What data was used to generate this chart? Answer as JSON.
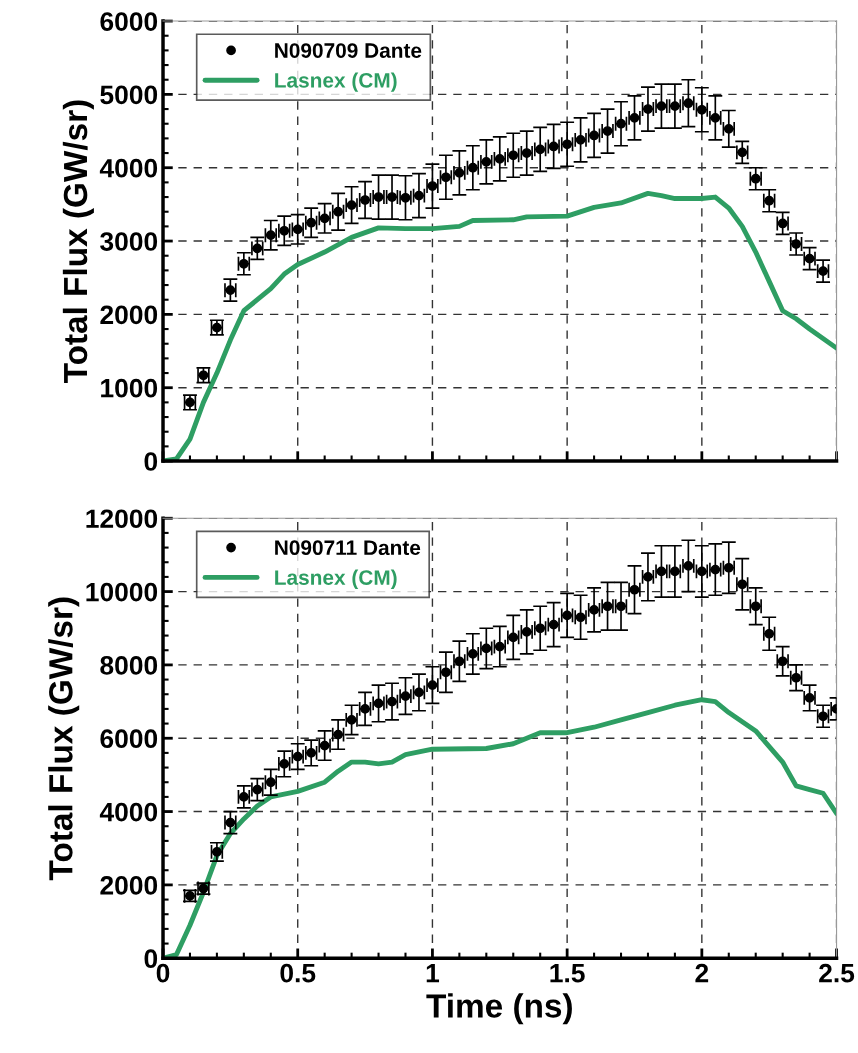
{
  "chart_data": [
    {
      "type": "line",
      "ylabel": "Total Flux (GW/sr)",
      "xlim": [
        0,
        2.5
      ],
      "ylim": [
        0,
        6000
      ],
      "xticks": [
        0,
        0.5,
        1,
        1.5,
        2,
        2.5
      ],
      "yticks": [
        0,
        1000,
        2000,
        3000,
        4000,
        5000,
        6000
      ],
      "tick_labels": "y",
      "grid": true,
      "legend": "top left",
      "series": [
        {
          "name": "N090709 Dante",
          "type": "scatter",
          "marker": "circle",
          "color": "#000000",
          "x": [
            0.1,
            0.15,
            0.2,
            0.25,
            0.3,
            0.35,
            0.4,
            0.45,
            0.5,
            0.55,
            0.6,
            0.65,
            0.7,
            0.75,
            0.8,
            0.85,
            0.9,
            0.95,
            1.0,
            1.05,
            1.1,
            1.15,
            1.2,
            1.25,
            1.3,
            1.35,
            1.4,
            1.45,
            1.5,
            1.55,
            1.6,
            1.65,
            1.7,
            1.75,
            1.8,
            1.85,
            1.9,
            1.95,
            2.0,
            2.05,
            2.1,
            2.15,
            2.2,
            2.25,
            2.3,
            2.35,
            2.4,
            2.45
          ],
          "values": [
            800,
            1170,
            1820,
            2330,
            2690,
            2900,
            3080,
            3140,
            3160,
            3250,
            3310,
            3400,
            3490,
            3560,
            3600,
            3600,
            3590,
            3620,
            3750,
            3870,
            3930,
            4000,
            4080,
            4120,
            4170,
            4200,
            4250,
            4290,
            4320,
            4380,
            4440,
            4500,
            4600,
            4680,
            4800,
            4840,
            4840,
            4880,
            4790,
            4680,
            4530,
            4210,
            3850,
            3550,
            3240,
            2960,
            2760,
            2590
          ],
          "errors": [
            100,
            100,
            100,
            150,
            150,
            150,
            200,
            200,
            200,
            200,
            200,
            250,
            250,
            250,
            300,
            300,
            300,
            300,
            300,
            300,
            300,
            300,
            300,
            300,
            300,
            300,
            300,
            300,
            300,
            300,
            300,
            300,
            300,
            300,
            300,
            300,
            300,
            320,
            300,
            300,
            250,
            150,
            150,
            150,
            150,
            150,
            150,
            150
          ],
          "xerrors": [
            0.02,
            0.02,
            0.02,
            0.02,
            0.02,
            0.02,
            0.02,
            0.02,
            0.02,
            0.02,
            0.02,
            0.02,
            0.02,
            0.02,
            0.02,
            0.02,
            0.02,
            0.02,
            0.02,
            0.02,
            0.02,
            0.02,
            0.02,
            0.02,
            0.02,
            0.02,
            0.02,
            0.02,
            0.02,
            0.02,
            0.02,
            0.02,
            0.02,
            0.02,
            0.02,
            0.02,
            0.02,
            0.02,
            0.02,
            0.02,
            0.02,
            0.02,
            0.02,
            0.02,
            0.02,
            0.02,
            0.02,
            0.02
          ]
        },
        {
          "name": "Lasnex (CM)",
          "line_style": "solid",
          "color": "#2e9e63",
          "x": [
            0,
            0.05,
            0.1,
            0.15,
            0.2,
            0.25,
            0.3,
            0.35,
            0.4,
            0.45,
            0.5,
            0.6,
            0.7,
            0.8,
            0.9,
            1.0,
            1.1,
            1.15,
            1.3,
            1.35,
            1.5,
            1.6,
            1.7,
            1.8,
            1.85,
            1.9,
            2.0,
            2.05,
            2.1,
            2.15,
            2.2,
            2.25,
            2.3,
            2.35,
            2.4,
            2.5
          ],
          "values": [
            0,
            30,
            300,
            800,
            1200,
            1650,
            2050,
            2200,
            2350,
            2550,
            2680,
            2850,
            3050,
            3180,
            3170,
            3170,
            3200,
            3280,
            3290,
            3330,
            3340,
            3460,
            3520,
            3650,
            3620,
            3580,
            3580,
            3600,
            3450,
            3200,
            2850,
            2450,
            2050,
            1940,
            1800,
            1540
          ]
        }
      ]
    },
    {
      "type": "line",
      "xlabel": "Time (ns)",
      "ylabel": "Total Flux (GW/sr)",
      "xlim": [
        0,
        2.5
      ],
      "ylim": [
        0,
        12000
      ],
      "xticks": [
        0,
        0.5,
        1,
        1.5,
        2,
        2.5
      ],
      "yticks": [
        0,
        2000,
        4000,
        6000,
        8000,
        10000,
        12000
      ],
      "grid": true,
      "legend": "top left",
      "series": [
        {
          "name": "N090711 Dante",
          "type": "scatter",
          "marker": "circle",
          "color": "#000000",
          "x": [
            0.1,
            0.15,
            0.2,
            0.25,
            0.3,
            0.35,
            0.4,
            0.45,
            0.5,
            0.55,
            0.6,
            0.65,
            0.7,
            0.75,
            0.8,
            0.85,
            0.9,
            0.95,
            1.0,
            1.05,
            1.1,
            1.15,
            1.2,
            1.25,
            1.3,
            1.35,
            1.4,
            1.45,
            1.5,
            1.55,
            1.6,
            1.65,
            1.7,
            1.75,
            1.8,
            1.85,
            1.9,
            1.95,
            2.0,
            2.05,
            2.1,
            2.15,
            2.2,
            2.25,
            2.3,
            2.35,
            2.4,
            2.45,
            2.5
          ],
          "values": [
            1700,
            1900,
            2900,
            3700,
            4400,
            4600,
            4800,
            5300,
            5500,
            5600,
            5800,
            6100,
            6500,
            6800,
            6950,
            7000,
            7150,
            7250,
            7450,
            7800,
            8100,
            8300,
            8450,
            8500,
            8750,
            8900,
            9000,
            9100,
            9350,
            9300,
            9500,
            9600,
            9600,
            10050,
            10400,
            10550,
            10550,
            10700,
            10550,
            10600,
            10650,
            10200,
            9600,
            8850,
            8100,
            7650,
            7100,
            6600,
            6800
          ],
          "errors": [
            150,
            150,
            250,
            300,
            300,
            300,
            350,
            350,
            350,
            350,
            400,
            400,
            400,
            450,
            500,
            500,
            500,
            500,
            500,
            550,
            550,
            550,
            550,
            550,
            600,
            600,
            600,
            600,
            600,
            600,
            600,
            650,
            650,
            650,
            650,
            700,
            700,
            700,
            700,
            700,
            700,
            700,
            500,
            450,
            400,
            350,
            350,
            300,
            300
          ],
          "xerrors": [
            0.02,
            0.02,
            0.02,
            0.02,
            0.02,
            0.02,
            0.02,
            0.02,
            0.02,
            0.02,
            0.02,
            0.02,
            0.02,
            0.02,
            0.02,
            0.02,
            0.02,
            0.02,
            0.02,
            0.02,
            0.02,
            0.02,
            0.02,
            0.02,
            0.02,
            0.02,
            0.02,
            0.02,
            0.02,
            0.02,
            0.02,
            0.02,
            0.02,
            0.02,
            0.02,
            0.02,
            0.02,
            0.02,
            0.02,
            0.02,
            0.02,
            0.02,
            0.02,
            0.02,
            0.02,
            0.02,
            0.02,
            0.02,
            0.02
          ]
        },
        {
          "name": "Lasnex (CM)",
          "line_style": "solid",
          "color": "#2e9e63",
          "x": [
            0,
            0.05,
            0.1,
            0.15,
            0.2,
            0.25,
            0.3,
            0.35,
            0.4,
            0.5,
            0.6,
            0.65,
            0.7,
            0.75,
            0.8,
            0.85,
            0.9,
            1.0,
            1.2,
            1.3,
            1.4,
            1.5,
            1.6,
            1.7,
            1.8,
            1.9,
            2.0,
            2.05,
            2.1,
            2.2,
            2.3,
            2.35,
            2.4,
            2.45,
            2.5
          ],
          "values": [
            0,
            100,
            900,
            1800,
            2800,
            3400,
            3800,
            4150,
            4400,
            4550,
            4800,
            5100,
            5350,
            5350,
            5300,
            5350,
            5550,
            5700,
            5720,
            5850,
            6150,
            6150,
            6300,
            6500,
            6700,
            6900,
            7050,
            7000,
            6700,
            6200,
            5350,
            4700,
            4600,
            4500,
            3950
          ]
        }
      ]
    }
  ]
}
